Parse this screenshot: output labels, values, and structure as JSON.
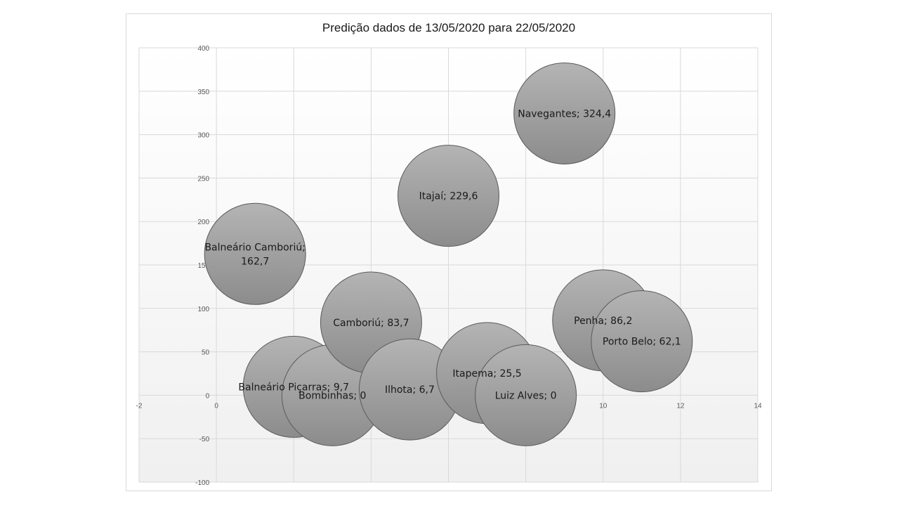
{
  "chart_data": {
    "type": "bubble",
    "title": "Predição dados de 13/05/2020 para 22/05/2020",
    "xlabel": "",
    "ylabel": "",
    "xlim": [
      -2,
      14
    ],
    "ylim": [
      -100,
      400
    ],
    "x_ticks": [
      -2,
      0,
      2,
      4,
      6,
      8,
      10,
      12,
      14
    ],
    "y_ticks": [
      -100,
      -50,
      0,
      50,
      100,
      150,
      200,
      250,
      300,
      350,
      400
    ],
    "grid": true,
    "colors": {
      "bubble_fill_top": "#b4b4b4",
      "bubble_fill_bottom": "#8c8c8c",
      "bubble_stroke": "#5a5a5a",
      "grid": "#d9d9d9",
      "plot_bg_top": "#ffffff",
      "plot_bg_bottom": "#f0f0f0"
    },
    "points": [
      {
        "label": "Balneário Camboriú; 162,7",
        "label_lines": [
          "Balneário  Camboriú;",
          "162,7"
        ],
        "x": 1,
        "y": 162.7
      },
      {
        "label": "Balneário  Piçarras; 9,7",
        "label_lines": [
          "Balneário  Piçarras; 9,7"
        ],
        "x": 2,
        "y": 9.7
      },
      {
        "label": "Bombinhas; 0",
        "label_lines": [
          "Bombinhas; 0"
        ],
        "x": 3,
        "y": 0
      },
      {
        "label": "Camboriú; 83,7",
        "label_lines": [
          "Camboriú; 83,7"
        ],
        "x": 4,
        "y": 83.7
      },
      {
        "label": "Ilhota; 6,7",
        "label_lines": [
          "Ilhota; 6,7"
        ],
        "x": 5,
        "y": 6.7
      },
      {
        "label": "Itajaí; 229,6",
        "label_lines": [
          "Itajaí; 229,6"
        ],
        "x": 6,
        "y": 229.6
      },
      {
        "label": "Itapema; 25,5",
        "label_lines": [
          "Itapema; 25,5"
        ],
        "x": 7,
        "y": 25.5
      },
      {
        "label": "Luiz Alves; 0",
        "label_lines": [
          "Luiz Alves; 0"
        ],
        "x": 8,
        "y": 0
      },
      {
        "label": "Navegantes; 324,4",
        "label_lines": [
          "Navegantes; 324,4"
        ],
        "x": 9,
        "y": 324.4
      },
      {
        "label": "Penha; 86,2",
        "label_lines": [
          "Penha; 86,2"
        ],
        "x": 10,
        "y": 86.2
      },
      {
        "label": "Porto Belo; 62,1",
        "label_lines": [
          "Porto Belo; 62,1"
        ],
        "x": 11,
        "y": 62.1
      }
    ]
  }
}
